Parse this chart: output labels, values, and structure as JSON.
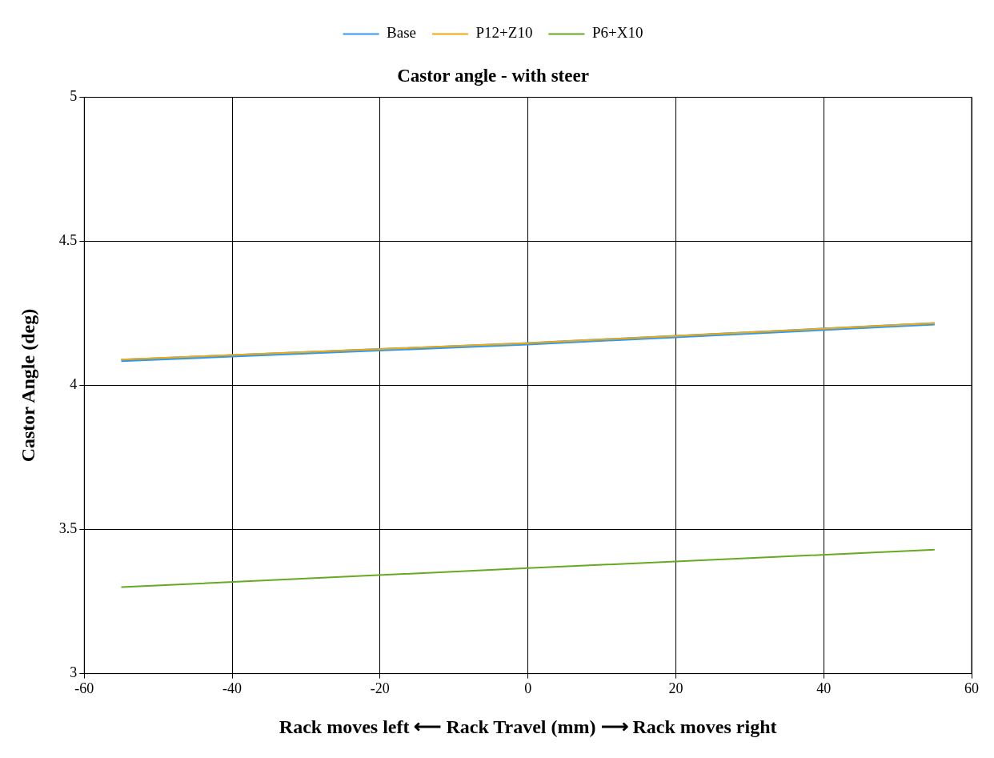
{
  "chart_data": {
    "type": "line",
    "title": "Castor angle - with steer",
    "xlabel": "Rack moves left ⟵ Rack Travel (mm) ⟶ Rack moves right",
    "ylabel": "Castor Angle (deg)",
    "xlim": [
      -60,
      60
    ],
    "xticks": [
      -60,
      -40,
      -20,
      0,
      20,
      40,
      60
    ],
    "ylim": [
      3,
      5
    ],
    "yticks": [
      3,
      3.5,
      4,
      4.5,
      5
    ],
    "grid": true,
    "legend": "top",
    "marker": "none",
    "line_style": "solid",
    "x": [
      -55,
      0,
      55
    ],
    "series": [
      {
        "name": "Base",
        "color": "#3399ee",
        "values": [
          4.087,
          4.145,
          4.214
        ]
      },
      {
        "name": "P12+Z10",
        "color": "#eeaa11",
        "values": [
          4.09,
          4.147,
          4.216
        ]
      },
      {
        "name": "P6+X10",
        "color": "#66aa22",
        "values": [
          3.3,
          3.366,
          3.43
        ]
      }
    ]
  }
}
